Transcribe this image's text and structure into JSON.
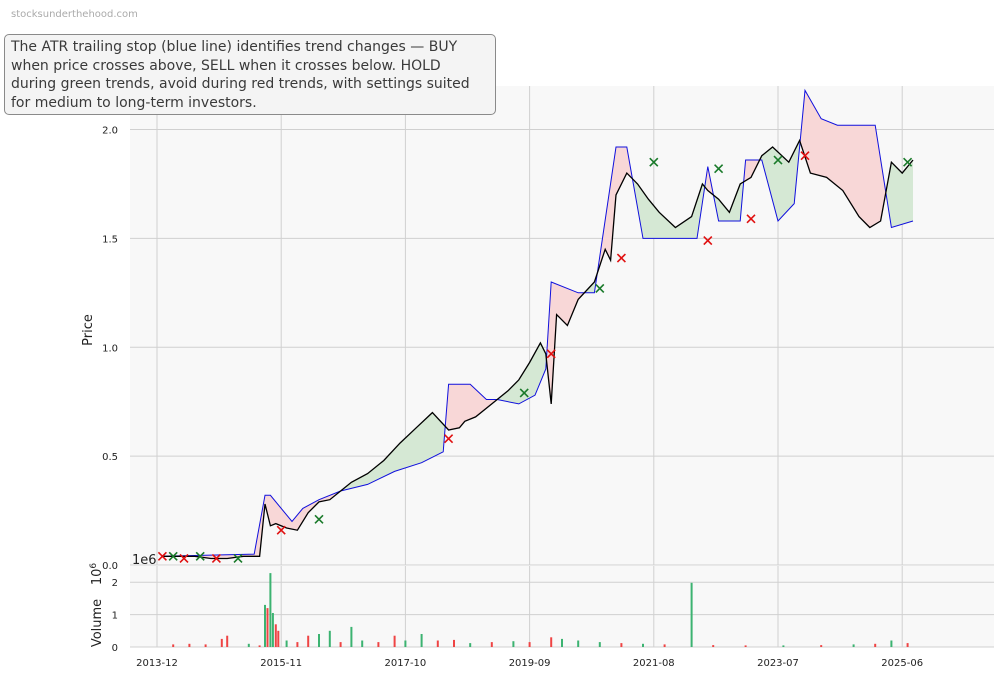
{
  "watermark": "stocksunderthehood.com",
  "annotation": "The ATR trailing stop (blue line) identifies trend changes — BUY when price crosses above, SELL when it crosses below. HOLD during green trends, avoid during red trends, with settings suited for medium to long-term investors.",
  "colors": {
    "price": "#000000",
    "stop": "#1010dd",
    "bull_fill": "#d5e8d4",
    "bear_fill": "#f8d7d7",
    "buy": "#1a7a2a",
    "sell": "#e01010",
    "vol_up": "#3cb371",
    "vol_down": "#ef4444",
    "panel_bg": "#f8f8f8",
    "grid": "#d0d0d0"
  },
  "chart_data": [
    {
      "type": "line",
      "panel": "price",
      "ylabel": "Price",
      "ylim": [
        0,
        2.2
      ],
      "yticks": [
        0.0,
        0.5,
        1.0,
        1.5,
        2.0
      ],
      "ytick_labels": [
        "0.0",
        "0.5",
        "1.0",
        "1.5",
        "2.0"
      ],
      "xlim": [
        "2013-07",
        "2026-11"
      ],
      "xticks": [
        "2013-12",
        "2015-11",
        "2017-10",
        "2019-09",
        "2021-08",
        "2023-07",
        "2025-06"
      ],
      "grid": true,
      "series": [
        {
          "role": "close",
          "x": [
            "2014-01",
            "2014-04",
            "2014-07",
            "2014-10",
            "2015-01",
            "2015-04",
            "2015-07",
            "2015-08",
            "2015-09",
            "2015-10",
            "2015-12",
            "2016-02",
            "2016-04",
            "2016-06",
            "2016-08",
            "2016-10",
            "2016-12",
            "2017-03",
            "2017-06",
            "2017-09",
            "2017-12",
            "2018-03",
            "2018-06",
            "2018-08",
            "2018-09",
            "2018-11",
            "2019-02",
            "2019-05",
            "2019-07",
            "2019-09",
            "2019-11",
            "2019-12",
            "2020-01",
            "2020-02",
            "2020-04",
            "2020-06",
            "2020-09",
            "2020-11",
            "2020-12",
            "2021-01",
            "2021-03",
            "2021-05",
            "2021-07",
            "2021-09",
            "2021-12",
            "2022-03",
            "2022-05",
            "2022-06",
            "2022-08",
            "2022-10",
            "2022-12",
            "2023-02",
            "2023-04",
            "2023-06",
            "2023-09",
            "2023-11",
            "2024-01",
            "2024-04",
            "2024-07",
            "2024-10",
            "2024-12",
            "2025-02",
            "2025-04",
            "2025-06",
            "2025-08"
          ],
          "values": [
            0.04,
            0.04,
            0.04,
            0.03,
            0.03,
            0.04,
            0.04,
            0.28,
            0.18,
            0.19,
            0.17,
            0.16,
            0.24,
            0.29,
            0.3,
            0.34,
            0.38,
            0.42,
            0.48,
            0.56,
            0.63,
            0.7,
            0.62,
            0.63,
            0.66,
            0.68,
            0.74,
            0.8,
            0.85,
            0.93,
            1.02,
            0.97,
            0.74,
            1.15,
            1.1,
            1.22,
            1.3,
            1.45,
            1.4,
            1.7,
            1.8,
            1.75,
            1.68,
            1.62,
            1.55,
            1.6,
            1.75,
            1.72,
            1.68,
            1.62,
            1.75,
            1.78,
            1.88,
            1.92,
            1.85,
            1.95,
            1.8,
            1.78,
            1.72,
            1.6,
            1.55,
            1.58,
            1.85,
            1.8,
            1.86
          ]
        },
        {
          "role": "atr_stop",
          "x": [
            "2014-01",
            "2015-06",
            "2015-08",
            "2015-09",
            "2016-01",
            "2016-03",
            "2016-06",
            "2016-10",
            "2017-03",
            "2017-08",
            "2018-01",
            "2018-05",
            "2018-06",
            "2018-10",
            "2019-01",
            "2019-03",
            "2019-07",
            "2019-10",
            "2019-12",
            "2020-01",
            "2020-06",
            "2020-09",
            "2021-01",
            "2021-03",
            "2021-06",
            "2021-07",
            "2021-12",
            "2022-04",
            "2022-06",
            "2022-08",
            "2022-12",
            "2023-01",
            "2023-04",
            "2023-07",
            "2023-10",
            "2023-12",
            "2024-03",
            "2024-06",
            "2024-09",
            "2025-01",
            "2025-04",
            "2025-08"
          ],
          "values": [
            0.04,
            0.05,
            0.32,
            0.32,
            0.2,
            0.26,
            0.3,
            0.34,
            0.37,
            0.43,
            0.47,
            0.52,
            0.83,
            0.83,
            0.76,
            0.76,
            0.74,
            0.78,
            0.9,
            1.3,
            1.25,
            1.25,
            1.92,
            1.92,
            1.5,
            1.5,
            1.5,
            1.5,
            1.83,
            1.58,
            1.58,
            1.86,
            1.86,
            1.58,
            1.66,
            2.18,
            2.05,
            2.02,
            2.02,
            2.02,
            1.55,
            1.58
          ]
        }
      ],
      "signals": [
        {
          "type": "sell",
          "x": "2014-01",
          "y": 0.04
        },
        {
          "type": "buy",
          "x": "2014-03",
          "y": 0.04
        },
        {
          "type": "sell",
          "x": "2014-05",
          "y": 0.03
        },
        {
          "type": "buy",
          "x": "2014-08",
          "y": 0.04
        },
        {
          "type": "sell",
          "x": "2014-11",
          "y": 0.03
        },
        {
          "type": "buy",
          "x": "2015-03",
          "y": 0.03
        },
        {
          "type": "sell",
          "x": "2015-11",
          "y": 0.16
        },
        {
          "type": "buy",
          "x": "2016-06",
          "y": 0.21
        },
        {
          "type": "sell",
          "x": "2018-06",
          "y": 0.58
        },
        {
          "type": "buy",
          "x": "2019-08",
          "y": 0.79
        },
        {
          "type": "sell",
          "x": "2020-01",
          "y": 0.97
        },
        {
          "type": "buy",
          "x": "2020-10",
          "y": 1.27
        },
        {
          "type": "sell",
          "x": "2021-02",
          "y": 1.41
        },
        {
          "type": "buy",
          "x": "2021-08",
          "y": 1.85
        },
        {
          "type": "sell",
          "x": "2022-06",
          "y": 1.49
        },
        {
          "type": "buy",
          "x": "2022-08",
          "y": 1.82
        },
        {
          "type": "sell",
          "x": "2023-02",
          "y": 1.59
        },
        {
          "type": "buy",
          "x": "2023-07",
          "y": 1.86
        },
        {
          "type": "sell",
          "x": "2023-12",
          "y": 1.88
        },
        {
          "type": "buy",
          "x": "2025-07",
          "y": 1.85
        }
      ]
    },
    {
      "type": "bar",
      "panel": "volume",
      "ylabel": "Volume",
      "offset_text": "1e6",
      "unit_label": "10^6",
      "ylim": [
        0,
        2.5
      ],
      "yticks": [
        0,
        1,
        2
      ],
      "ytick_labels": [
        "0",
        "1",
        "2"
      ],
      "grid": true,
      "bars": [
        {
          "x": "2014-03",
          "value": 0.08,
          "dir": "down"
        },
        {
          "x": "2014-06",
          "value": 0.1,
          "dir": "down"
        },
        {
          "x": "2014-09",
          "value": 0.08,
          "dir": "down"
        },
        {
          "x": "2014-12",
          "value": 0.25,
          "dir": "down"
        },
        {
          "x": "2015-01",
          "value": 0.35,
          "dir": "down"
        },
        {
          "x": "2015-05",
          "value": 0.1,
          "dir": "up"
        },
        {
          "x": "2015-07",
          "value": 0.05,
          "dir": "down"
        },
        {
          "x": "2015-08",
          "value": 1.3,
          "dir": "up"
        },
        {
          "x": "2015-08-15",
          "value": 1.2,
          "dir": "down"
        },
        {
          "x": "2015-09",
          "value": 2.28,
          "dir": "up"
        },
        {
          "x": "2015-09-15",
          "value": 1.05,
          "dir": "up"
        },
        {
          "x": "2015-10",
          "value": 0.7,
          "dir": "down"
        },
        {
          "x": "2015-10-15",
          "value": 0.5,
          "dir": "down"
        },
        {
          "x": "2015-12",
          "value": 0.2,
          "dir": "up"
        },
        {
          "x": "2016-02",
          "value": 0.15,
          "dir": "down"
        },
        {
          "x": "2016-04",
          "value": 0.35,
          "dir": "down"
        },
        {
          "x": "2016-06",
          "value": 0.4,
          "dir": "up"
        },
        {
          "x": "2016-08",
          "value": 0.5,
          "dir": "up"
        },
        {
          "x": "2016-10",
          "value": 0.15,
          "dir": "down"
        },
        {
          "x": "2016-12",
          "value": 0.62,
          "dir": "up"
        },
        {
          "x": "2017-02",
          "value": 0.2,
          "dir": "up"
        },
        {
          "x": "2017-05",
          "value": 0.15,
          "dir": "down"
        },
        {
          "x": "2017-08",
          "value": 0.35,
          "dir": "down"
        },
        {
          "x": "2017-10",
          "value": 0.2,
          "dir": "up"
        },
        {
          "x": "2018-01",
          "value": 0.4,
          "dir": "up"
        },
        {
          "x": "2018-04",
          "value": 0.2,
          "dir": "down"
        },
        {
          "x": "2018-07",
          "value": 0.22,
          "dir": "down"
        },
        {
          "x": "2018-10",
          "value": 0.12,
          "dir": "up"
        },
        {
          "x": "2019-02",
          "value": 0.15,
          "dir": "down"
        },
        {
          "x": "2019-06",
          "value": 0.18,
          "dir": "up"
        },
        {
          "x": "2019-09",
          "value": 0.15,
          "dir": "down"
        },
        {
          "x": "2020-01",
          "value": 0.3,
          "dir": "down"
        },
        {
          "x": "2020-03",
          "value": 0.25,
          "dir": "up"
        },
        {
          "x": "2020-06",
          "value": 0.2,
          "dir": "up"
        },
        {
          "x": "2020-10",
          "value": 0.15,
          "dir": "up"
        },
        {
          "x": "2021-02",
          "value": 0.12,
          "dir": "down"
        },
        {
          "x": "2021-06",
          "value": 0.1,
          "dir": "up"
        },
        {
          "x": "2021-10",
          "value": 0.08,
          "dir": "down"
        },
        {
          "x": "2022-03",
          "value": 1.98,
          "dir": "up"
        },
        {
          "x": "2022-07",
          "value": 0.06,
          "dir": "down"
        },
        {
          "x": "2023-01",
          "value": 0.05,
          "dir": "down"
        },
        {
          "x": "2023-08",
          "value": 0.05,
          "dir": "up"
        },
        {
          "x": "2024-03",
          "value": 0.06,
          "dir": "down"
        },
        {
          "x": "2024-09",
          "value": 0.08,
          "dir": "up"
        },
        {
          "x": "2025-01",
          "value": 0.1,
          "dir": "down"
        },
        {
          "x": "2025-04",
          "value": 0.2,
          "dir": "up"
        },
        {
          "x": "2025-07",
          "value": 0.12,
          "dir": "down"
        }
      ]
    }
  ]
}
